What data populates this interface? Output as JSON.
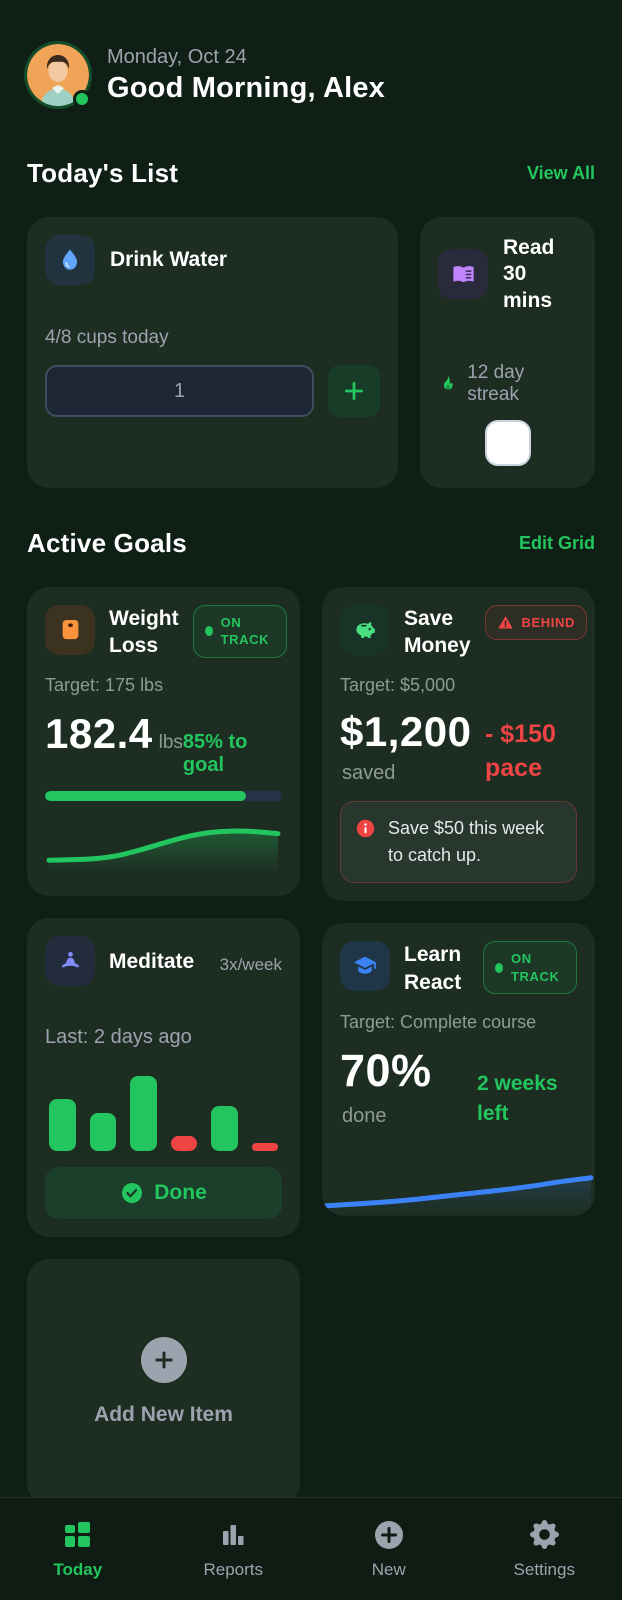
{
  "colors": {
    "background": "#0f1f15",
    "card": "#1d2d22",
    "accent_green": "#22c55e",
    "danger_red": "#ef4444",
    "info_blue": "#3b82f6",
    "muted_text": "#9ca3af"
  },
  "header": {
    "date": "Monday, Oct 24",
    "greeting": "Good Morning, Alex"
  },
  "todays_list": {
    "title": "Today's List",
    "view_all_label": "View All",
    "water": {
      "title": "Drink Water",
      "progress_label": "4/8 cups today",
      "input_value": "1"
    },
    "read": {
      "title": "Read 30 mins",
      "streak_label": "12 day streak"
    }
  },
  "active_goals": {
    "title": "Active Goals",
    "edit_label": "Edit Grid",
    "weight": {
      "title": "Weight Loss",
      "badge": "ON TRACK",
      "target": "Target: 175 lbs",
      "value": "182.4",
      "unit": "lbs",
      "pct_label": "85% to goal",
      "progress_pct": 85,
      "spark": [
        15,
        16,
        18,
        24,
        35,
        48,
        60,
        68,
        71,
        70,
        66
      ]
    },
    "save": {
      "title": "Save Money",
      "badge": "BEHIND",
      "target": "Target: $5,000",
      "value": "$1,200",
      "unit": "saved",
      "pace_label": "- $150 pace",
      "note": "Save $50 this week to catch up."
    },
    "meditate": {
      "title": "Meditate",
      "frequency": "3x/week",
      "last_label": "Last: 2 days ago",
      "bars": [
        {
          "v": 60,
          "status": "done"
        },
        {
          "v": 44,
          "status": "done"
        },
        {
          "v": 86,
          "status": "done"
        },
        {
          "v": 18,
          "status": "missed"
        },
        {
          "v": 52,
          "status": "done"
        },
        {
          "v": 10,
          "status": "missed"
        }
      ],
      "done_label": "Done"
    },
    "react": {
      "title": "Learn React",
      "badge": "ON TRACK",
      "target": "Target: Complete course",
      "value": "70%",
      "unit": "done",
      "time_left": "2 weeks left",
      "spark": [
        8,
        11,
        14,
        18,
        23,
        28,
        33,
        39,
        46,
        52
      ]
    },
    "add": {
      "label": "Add New Item"
    }
  },
  "nav": {
    "items": [
      {
        "label": "Today"
      },
      {
        "label": "Reports"
      },
      {
        "label": "New"
      },
      {
        "label": "Settings"
      }
    ]
  }
}
